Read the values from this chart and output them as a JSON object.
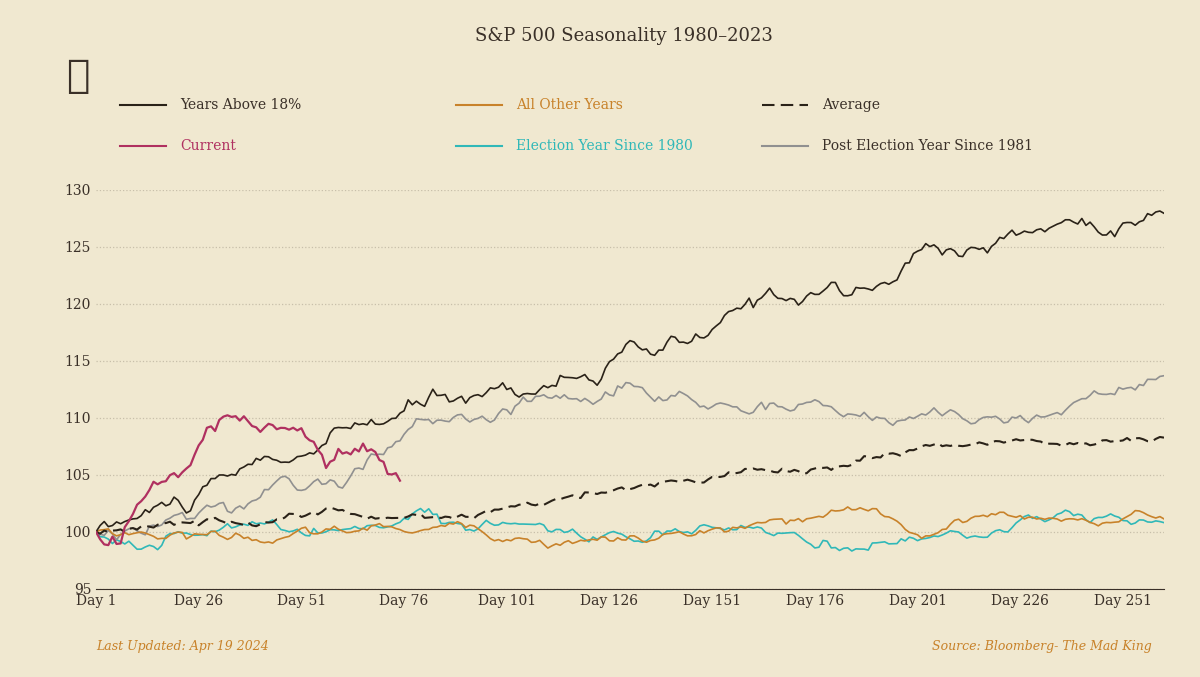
{
  "title": "S&P 500 Seasonality 1980–2023",
  "background_color": "#f0e8d0",
  "plot_bg_color": "#f0e8d0",
  "ylim": [
    95,
    130
  ],
  "yticks": [
    95,
    100,
    105,
    110,
    115,
    120,
    125,
    130
  ],
  "xtick_labels": [
    "Day 1",
    "Day 26",
    "Day 51",
    "Day 76",
    "Day 101",
    "Day 126",
    "Day 151",
    "Day 176",
    "Day 201",
    "Day 226",
    "Day 251"
  ],
  "xtick_positions": [
    1,
    26,
    51,
    76,
    101,
    126,
    151,
    176,
    201,
    226,
    251
  ],
  "n_days": 261,
  "title_color": "#3a3028",
  "tick_color": "#3a3028",
  "grid_color": "#c8bfaa",
  "footer_left": "Last Updated: Apr 19 2024",
  "footer_right": "Source: Bloomberg- The Mad King",
  "footer_color": "#c8822a",
  "years_above_18_color": "#2a2218",
  "all_other_years_color": "#c8822a",
  "average_color": "#2a2218",
  "current_color": "#b03060",
  "election_year_color": "#30b8b8",
  "post_election_color": "#909090",
  "years_above_18_label": "Years Above 18%",
  "all_other_years_label": "All Other Years",
  "average_label": "Average",
  "current_label": "Current",
  "election_year_label": "Election Year Since 1980",
  "post_election_label": "Post Election Year Since 1981"
}
